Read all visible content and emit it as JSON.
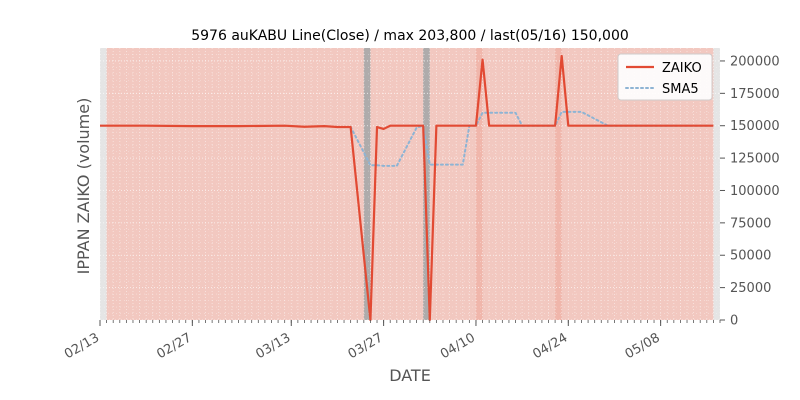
{
  "chart_data": {
    "type": "line",
    "title": "5976 auKABU Line(Close) / max 203,800 / last(05/16) 150,000",
    "xlabel": "DATE",
    "ylabel": "IPPAN ZAIKO (volume)",
    "ylim": [
      0,
      210000
    ],
    "y_ticks": [
      0,
      25000,
      50000,
      75000,
      100000,
      125000,
      150000,
      175000,
      200000
    ],
    "y_tick_labels": [
      "0",
      "25000",
      "50000",
      "75000",
      "100000",
      "125000",
      "150000",
      "175000",
      "200000"
    ],
    "x_range": [
      "2024-02-13",
      "2024-05-17"
    ],
    "x_ticks": [
      "2024-02-13",
      "2024-02-27",
      "2024-03-13",
      "2024-03-27",
      "2024-04-10",
      "2024-04-24",
      "2024-05-08"
    ],
    "x_tick_labels": [
      "02/13",
      "02/27",
      "03/13",
      "03/27",
      "04/10",
      "04/24",
      "05/08"
    ],
    "legend": {
      "position": "top-right",
      "entries": [
        "ZAIKO",
        "SMA5"
      ]
    },
    "series": [
      {
        "name": "ZAIKO",
        "color": "#e24a33",
        "style": "solid",
        "points": [
          [
            "2024-02-13",
            150000
          ],
          [
            "2024-02-20",
            150000
          ],
          [
            "2024-02-27",
            149700
          ],
          [
            "2024-03-05",
            149700
          ],
          [
            "2024-03-12",
            150000
          ],
          [
            "2024-03-15",
            149200
          ],
          [
            "2024-03-18",
            149700
          ],
          [
            "2024-03-20",
            149000
          ],
          [
            "2024-03-22",
            149000
          ],
          [
            "2024-03-25",
            0
          ],
          [
            "2024-03-26",
            149000
          ],
          [
            "2024-03-27",
            147500
          ],
          [
            "2024-03-28",
            150000
          ],
          [
            "2024-03-29",
            150000
          ],
          [
            "2024-04-01",
            150000
          ],
          [
            "2024-04-02",
            150000
          ],
          [
            "2024-04-03",
            0
          ],
          [
            "2024-04-04",
            150000
          ],
          [
            "2024-04-05",
            150000
          ],
          [
            "2024-04-08",
            150000
          ],
          [
            "2024-04-09",
            150000
          ],
          [
            "2024-04-10",
            150000
          ],
          [
            "2024-04-11",
            201000
          ],
          [
            "2024-04-12",
            150000
          ],
          [
            "2024-04-15",
            150000
          ],
          [
            "2024-04-19",
            150000
          ],
          [
            "2024-04-22",
            150000
          ],
          [
            "2024-04-23",
            203800
          ],
          [
            "2024-04-24",
            150000
          ],
          [
            "2024-04-30",
            150000
          ],
          [
            "2024-05-08",
            150000
          ],
          [
            "2024-05-16",
            150000
          ]
        ]
      },
      {
        "name": "SMA5",
        "color": "#8eb4d4",
        "style": "dotted",
        "points": [
          [
            "2024-03-22",
            149100
          ],
          [
            "2024-03-25",
            119500
          ],
          [
            "2024-03-26",
            119500
          ],
          [
            "2024-03-27",
            119000
          ],
          [
            "2024-03-28",
            119000
          ],
          [
            "2024-03-29",
            119000
          ],
          [
            "2024-04-01",
            148500
          ],
          [
            "2024-04-02",
            150000
          ],
          [
            "2024-04-03",
            120000
          ],
          [
            "2024-04-04",
            120000
          ],
          [
            "2024-04-05",
            120000
          ],
          [
            "2024-04-08",
            120000
          ],
          [
            "2024-04-09",
            150000
          ],
          [
            "2024-04-10",
            150000
          ],
          [
            "2024-04-11",
            160000
          ],
          [
            "2024-04-12",
            160000
          ],
          [
            "2024-04-15",
            160000
          ],
          [
            "2024-04-16",
            160000
          ],
          [
            "2024-04-17",
            150000
          ],
          [
            "2024-04-19",
            150000
          ],
          [
            "2024-04-22",
            150000
          ],
          [
            "2024-04-23",
            160700
          ],
          [
            "2024-04-24",
            160700
          ],
          [
            "2024-04-25",
            160700
          ],
          [
            "2024-04-26",
            160700
          ],
          [
            "2024-04-30",
            150000
          ],
          [
            "2024-05-16",
            150000
          ]
        ]
      }
    ],
    "highlight_bands": [
      {
        "from": "2024-02-14",
        "to": "2024-05-16",
        "color": "#f2c8c0"
      },
      {
        "from": "2024-03-24",
        "to": "2024-03-25",
        "color": "#aaaaaa"
      },
      {
        "from": "2024-04-02",
        "to": "2024-04-03",
        "color": "#aaaaaa"
      },
      {
        "from": "2024-04-10",
        "to": "2024-04-11",
        "color": "#efb5aa"
      },
      {
        "from": "2024-04-22",
        "to": "2024-04-23",
        "color": "#efb5aa"
      }
    ],
    "grid": true,
    "background": "#e5e5e5"
  }
}
